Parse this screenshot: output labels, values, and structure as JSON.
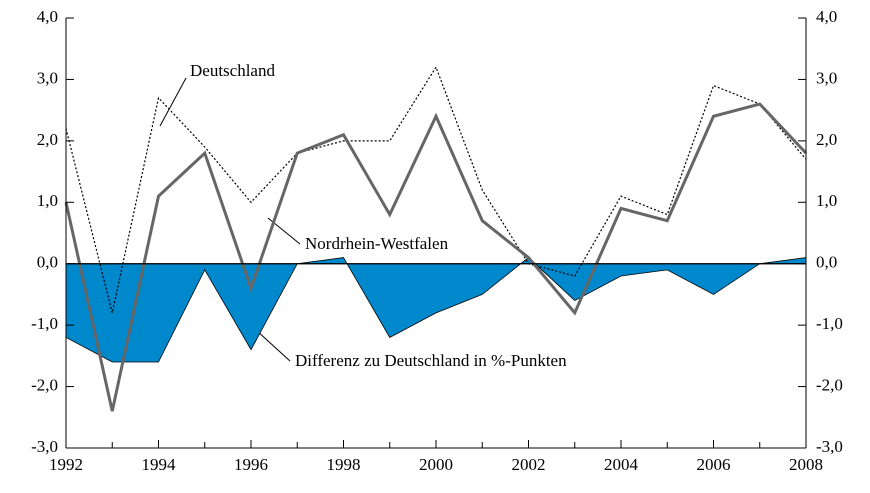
{
  "chart_data": {
    "type": "line",
    "x": [
      1992,
      1993,
      1994,
      1995,
      1996,
      1997,
      1998,
      1999,
      2000,
      2001,
      2002,
      2003,
      2004,
      2005,
      2006,
      2007,
      2008
    ],
    "series": [
      {
        "name": "Differenz zu Deutschland in %-Punkten",
        "style": "area",
        "color": "#0088cc",
        "values": [
          -1.2,
          -1.6,
          -1.6,
          -0.1,
          -1.4,
          0.0,
          0.1,
          -1.2,
          -0.8,
          -0.5,
          0.1,
          -0.6,
          -0.2,
          -0.1,
          -0.5,
          0.0,
          0.1
        ]
      },
      {
        "name": "Deutschland",
        "style": "dotted",
        "color": "#000000",
        "values": [
          2.2,
          -0.8,
          2.7,
          1.9,
          1.0,
          1.8,
          2.0,
          2.0,
          3.2,
          1.2,
          0.0,
          -0.2,
          1.1,
          0.8,
          2.9,
          2.6,
          1.7
        ]
      },
      {
        "name": "Nordrhein-Westfalen",
        "style": "solid",
        "color": "#666666",
        "values": [
          1.0,
          -2.4,
          1.1,
          1.8,
          -0.4,
          1.8,
          2.1,
          0.8,
          2.4,
          0.7,
          0.1,
          -0.8,
          0.9,
          0.7,
          2.4,
          2.6,
          1.8
        ]
      }
    ],
    "xlim": [
      1992,
      2008
    ],
    "xticks": [
      1992,
      1994,
      1996,
      1998,
      2000,
      2002,
      2004,
      2006,
      2008
    ],
    "ylim": [
      -3,
      4
    ],
    "yticks": [
      {
        "value": -3,
        "label": "-3,0"
      },
      {
        "value": -2,
        "label": "-2,0"
      },
      {
        "value": -1,
        "label": "-1,0"
      },
      {
        "value": 0,
        "label": "0,0"
      },
      {
        "value": 1,
        "label": "1,0"
      },
      {
        "value": 2,
        "label": "2,0"
      },
      {
        "value": 3,
        "label": "3,0"
      },
      {
        "value": 4,
        "label": "4,0"
      }
    ]
  }
}
